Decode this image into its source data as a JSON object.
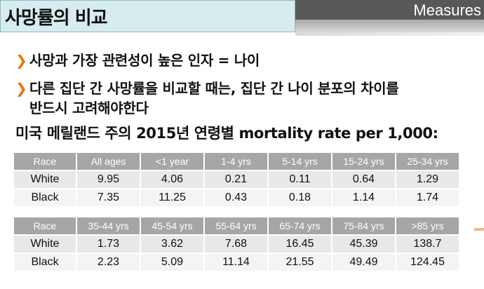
{
  "slide": {
    "title": "사망률의 비교",
    "header_label": "Measures",
    "bullets": [
      {
        "lines": [
          "사망과 가장 관련성이 높은 인자 = 나이"
        ]
      },
      {
        "lines": [
          "다른 집단 간 사망률을 비교할 때는, 집단 간 나이 분포의 차이를",
          "반드시 고려해야한다"
        ]
      }
    ],
    "subtitle": "미국 메릴랜드 주의 2015년 연령별 mortality rate per 1,000:"
  },
  "tables": [
    {
      "headers": [
        "Race",
        "All ages",
        "<1 year",
        "1-4 yrs",
        "5-14 yrs",
        "15-24 yrs",
        "25-34 yrs"
      ],
      "rows": [
        [
          "White",
          "9.95",
          "4.06",
          "0.21",
          "0.11",
          "0.64",
          "1.29"
        ],
        [
          "Black",
          "7.35",
          "11.25",
          "0.43",
          "0.18",
          "1.14",
          "1.74"
        ]
      ]
    },
    {
      "headers": [
        "Race",
        "35-44 yrs",
        "45-54 yrs",
        "55-64 yrs",
        "65-74 yrs",
        "75-84 yrs",
        ">85 yrs"
      ],
      "rows": [
        [
          "White",
          "1.73",
          "3.62",
          "7.68",
          "16.45",
          "45.39",
          "138.7"
        ],
        [
          "Black",
          "2.23",
          "5.09",
          "11.14",
          "21.55",
          "49.49",
          "124.45"
        ]
      ]
    }
  ],
  "colors": {
    "header_cell": "#a6a6a6",
    "bullet_arrow": "#e8730c",
    "title_box": "#d6ecef"
  }
}
